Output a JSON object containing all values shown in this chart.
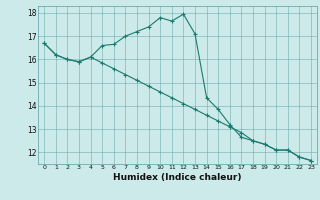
{
  "xlabel": "Humidex (Indice chaleur)",
  "bg_color": "#cceaea",
  "grid_color": "#5a9e9e",
  "line_color": "#1a7a6e",
  "line1_x": [
    0,
    1,
    2,
    3,
    4,
    5,
    6,
    7,
    8,
    9,
    10,
    11,
    12,
    13,
    14,
    15,
    16,
    17,
    18,
    19,
    20,
    21,
    22,
    23
  ],
  "line1_y": [
    16.7,
    16.2,
    16.0,
    15.9,
    16.1,
    16.6,
    16.65,
    17.0,
    17.2,
    17.4,
    17.8,
    17.65,
    17.95,
    17.1,
    14.35,
    13.85,
    13.2,
    12.65,
    12.5,
    12.35,
    12.1,
    12.1,
    11.8,
    11.65
  ],
  "line2_x": [
    0,
    1,
    2,
    3,
    4,
    5,
    6,
    7,
    8,
    9,
    10,
    11,
    12,
    13,
    14,
    15,
    16,
    17,
    18,
    19,
    20,
    21,
    22,
    23
  ],
  "line2_y": [
    16.7,
    16.2,
    16.0,
    15.9,
    16.1,
    15.85,
    15.6,
    15.35,
    15.1,
    14.85,
    14.6,
    14.35,
    14.1,
    13.85,
    13.6,
    13.35,
    13.1,
    12.85,
    12.5,
    12.35,
    12.1,
    12.1,
    11.8,
    11.65
  ],
  "ylim": [
    11.5,
    18.3
  ],
  "xlim": [
    -0.5,
    23.5
  ],
  "yticks": [
    12,
    13,
    14,
    15,
    16,
    17,
    18
  ],
  "xticks": [
    0,
    1,
    2,
    3,
    4,
    5,
    6,
    7,
    8,
    9,
    10,
    11,
    12,
    13,
    14,
    15,
    16,
    17,
    18,
    19,
    20,
    21,
    22,
    23
  ]
}
